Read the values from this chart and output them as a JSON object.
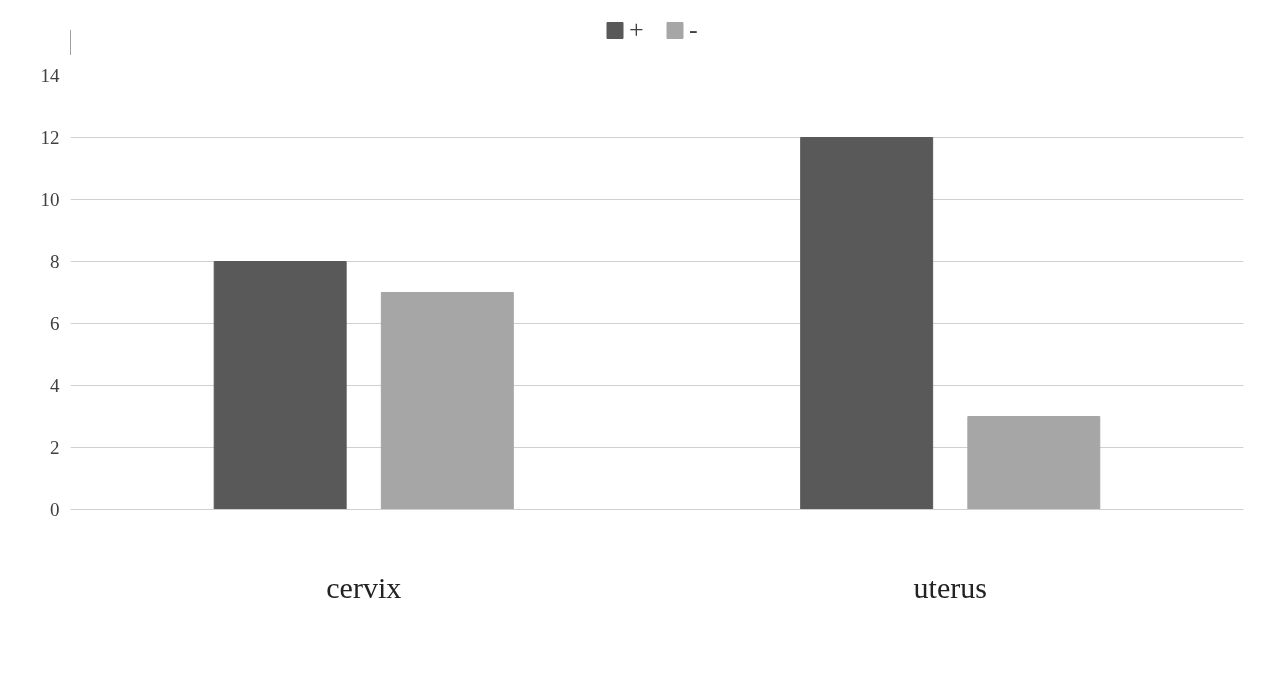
{
  "chart_data": {
    "type": "bar",
    "categories": [
      "cervix",
      "uterus"
    ],
    "series": [
      {
        "name": "+",
        "color": "#595959",
        "values": [
          8,
          12
        ]
      },
      {
        "name": "-",
        "color": "#a6a6a6",
        "values": [
          7,
          3
        ]
      }
    ],
    "ylim": [
      0,
      14
    ],
    "yticks": [
      0,
      2,
      4,
      6,
      8,
      10,
      12,
      14
    ],
    "grid": "y",
    "legend": "top"
  }
}
